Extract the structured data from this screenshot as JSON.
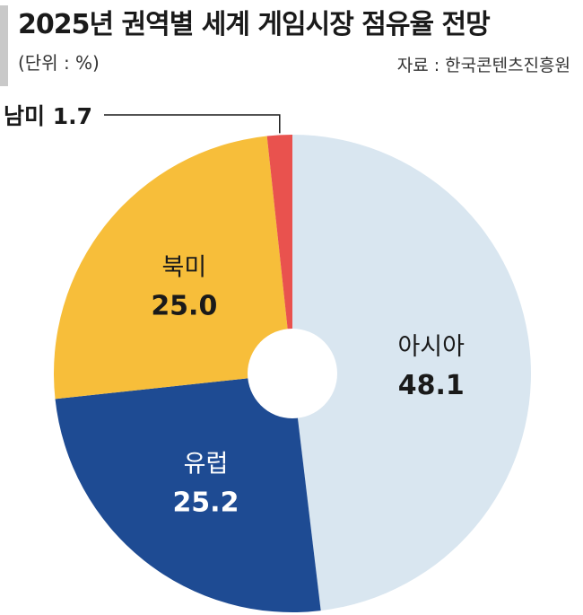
{
  "header": {
    "title": "2025년 권역별 세계 게임시장 점유율 전망",
    "unit": "(단위 : %)",
    "source": "자료 : 한국콘텐츠진흥원"
  },
  "chart_data": {
    "type": "pie",
    "title": "2025년 권역별 세계 게임시장 점유율 전망",
    "unit": "%",
    "donut": true,
    "start_angle_deg": 0,
    "direction": "clockwise",
    "slices": [
      {
        "label": "아시아",
        "value": 48.1,
        "color": "#d9e6f0",
        "text_color": "#1a1a1a"
      },
      {
        "label": "유럽",
        "value": 25.2,
        "color": "#1e4b93",
        "text_color": "#ffffff"
      },
      {
        "label": "북미",
        "value": 25.0,
        "color": "#f7be3a",
        "text_color": "#1a1a1a"
      },
      {
        "label": "남미",
        "value": 1.7,
        "color": "#e9524e",
        "text_color": "#1a1a1a",
        "external_label": true
      }
    ]
  }
}
